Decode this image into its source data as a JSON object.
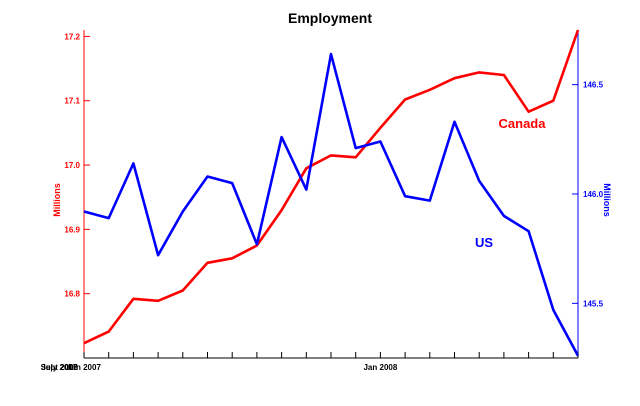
{
  "chart_data": {
    "type": "line",
    "title": "Employment",
    "x_tick_labels": [
      "Jan 2007",
      "July 2007",
      "Jan 2008",
      "Sept 2008"
    ],
    "x": [
      "Jan 2007",
      "Feb 2007",
      "Mar 2007",
      "Apr 2007",
      "May 2007",
      "Jun 2007",
      "Jul 2007",
      "Aug 2007",
      "Sep 2007",
      "Oct 2007",
      "Nov 2007",
      "Dec 2007",
      "Jan 2008",
      "Feb 2008",
      "Mar 2008",
      "Apr 2008",
      "May 2008",
      "Jun 2008",
      "Jul 2008",
      "Aug 2008",
      "Sep 2008"
    ],
    "left_axis": {
      "label": "Millions",
      "ylim": [
        16.7,
        17.21
      ],
      "ticks": [
        "16.8",
        "16.9",
        "17.0",
        "17.1",
        "17.2"
      ],
      "color": "#ff0000"
    },
    "right_axis": {
      "label": "Millions",
      "ylim": [
        145.25,
        146.75
      ],
      "ticks": [
        "145.5",
        "146.0",
        "146.5"
      ],
      "color": "#0000ff"
    },
    "series": [
      {
        "name": "Canada",
        "axis": "left",
        "color": "#ff0000",
        "values": [
          16.723,
          16.741,
          16.792,
          16.789,
          16.805,
          16.848,
          16.855,
          16.875,
          16.93,
          16.995,
          17.015,
          17.012,
          17.058,
          17.102,
          17.117,
          17.135,
          17.144,
          17.14,
          17.083,
          17.1,
          17.21
        ]
      },
      {
        "name": "US",
        "axis": "right",
        "color": "#0000ff",
        "values": [
          145.92,
          145.89,
          146.14,
          145.72,
          145.92,
          146.08,
          146.05,
          145.77,
          146.26,
          146.02,
          146.64,
          146.21,
          146.24,
          145.99,
          145.97,
          146.33,
          146.06,
          145.9,
          145.83,
          145.47,
          145.26
        ]
      }
    ]
  }
}
